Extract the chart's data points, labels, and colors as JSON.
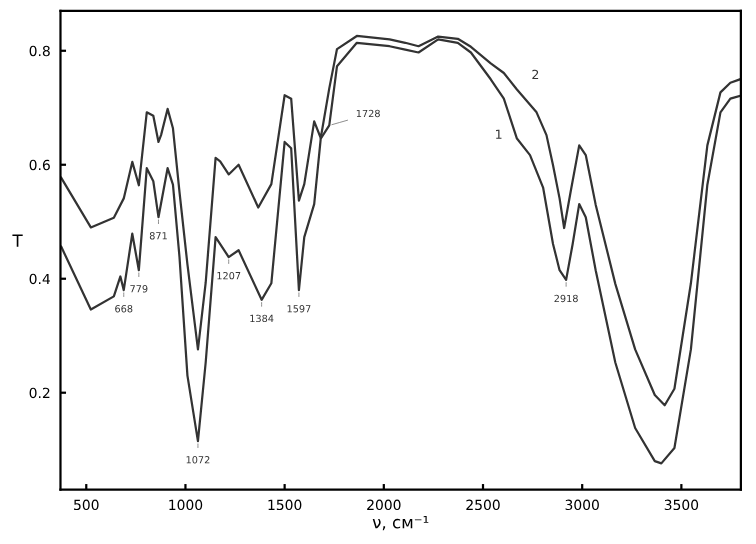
{
  "chart_data": {
    "type": "line",
    "xlabel": "ν, см⁻¹",
    "ylabel": "T",
    "xlim": [
      370,
      3800
    ],
    "ylim": [
      0.03,
      0.87
    ],
    "xticks": [
      500,
      1000,
      1500,
      2000,
      2500,
      3000,
      3500
    ],
    "yticks": [
      0.2,
      0.4,
      0.6,
      0.8
    ],
    "grid": false,
    "marker": "none",
    "line_style": "solid",
    "series": [
      {
        "color": "#333333",
        "x": [
          374,
          523,
          639,
          672,
          689,
          732,
          765,
          805,
          838,
          864,
          910,
          937,
          970,
          1010,
          1063,
          1102,
          1152,
          1218,
          1268,
          1384,
          1433,
          1500,
          1533,
          1572,
          1599,
          1649,
          1682,
          1725,
          1764,
          1864,
          2029,
          2108,
          2175,
          2274,
          2373,
          2439,
          2539,
          2605,
          2671,
          2737,
          2803,
          2853,
          2886,
          2919,
          2952,
          2985,
          3018,
          3068,
          3167,
          3267,
          3366,
          3399,
          3465,
          3548,
          3631,
          3697,
          3747,
          3796
        ],
        "values": [
          0.456,
          0.346,
          0.369,
          0.404,
          0.38,
          0.479,
          0.415,
          0.594,
          0.571,
          0.508,
          0.594,
          0.565,
          0.438,
          0.23,
          0.115,
          0.253,
          0.473,
          0.438,
          0.45,
          0.363,
          0.392,
          0.64,
          0.629,
          0.38,
          0.473,
          0.531,
          0.646,
          0.669,
          0.773,
          0.814,
          0.808,
          0.802,
          0.797,
          0.82,
          0.814,
          0.797,
          0.75,
          0.716,
          0.646,
          0.617,
          0.56,
          0.461,
          0.415,
          0.398,
          0.461,
          0.531,
          0.508,
          0.415,
          0.253,
          0.138,
          0.08,
          0.076,
          0.103,
          0.276,
          0.565,
          0.692,
          0.716,
          0.721
        ]
      },
      {
        "color": "#333333",
        "x": [
          374,
          523,
          639,
          689,
          732,
          765,
          805,
          838,
          864,
          877,
          910,
          937,
          970,
          1010,
          1063,
          1102,
          1152,
          1175,
          1218,
          1268,
          1367,
          1433,
          1500,
          1533,
          1572,
          1599,
          1649,
          1682,
          1725,
          1764,
          1864,
          2029,
          2108,
          2175,
          2274,
          2373,
          2439,
          2539,
          2605,
          2671,
          2770,
          2820,
          2853,
          2886,
          2909,
          2942,
          2985,
          3018,
          3068,
          3167,
          3267,
          3366,
          3416,
          3465,
          3548,
          3631,
          3697,
          3747,
          3796
        ],
        "values": [
          0.577,
          0.49,
          0.507,
          0.541,
          0.605,
          0.564,
          0.692,
          0.686,
          0.64,
          0.652,
          0.698,
          0.664,
          0.552,
          0.425,
          0.276,
          0.393,
          0.612,
          0.606,
          0.583,
          0.6,
          0.525,
          0.566,
          0.722,
          0.716,
          0.537,
          0.566,
          0.676,
          0.647,
          0.734,
          0.803,
          0.826,
          0.82,
          0.814,
          0.808,
          0.825,
          0.821,
          0.807,
          0.778,
          0.761,
          0.732,
          0.692,
          0.652,
          0.599,
          0.541,
          0.489,
          0.553,
          0.634,
          0.617,
          0.53,
          0.391,
          0.276,
          0.196,
          0.178,
          0.207,
          0.392,
          0.634,
          0.727,
          0.744,
          0.75
        ]
      }
    ],
    "annotations": [
      "1",
      "2",
      {
        "text": "668",
        "x": 689,
        "y": 0.38
      },
      {
        "text": "779",
        "x": 765,
        "y": 0.415
      },
      {
        "text": "871",
        "x": 864,
        "y": 0.508
      },
      {
        "text": "1072",
        "x": 1063,
        "y": 0.115
      },
      {
        "text": "1207",
        "x": 1218,
        "y": 0.438
      },
      {
        "text": "1384",
        "x": 1384,
        "y": 0.363
      },
      {
        "text": "1597",
        "x": 1572,
        "y": 0.38
      },
      {
        "text": "1728",
        "x": 1725,
        "y": 0.669
      },
      {
        "text": "2918",
        "x": 2919,
        "y": 0.398
      }
    ]
  }
}
